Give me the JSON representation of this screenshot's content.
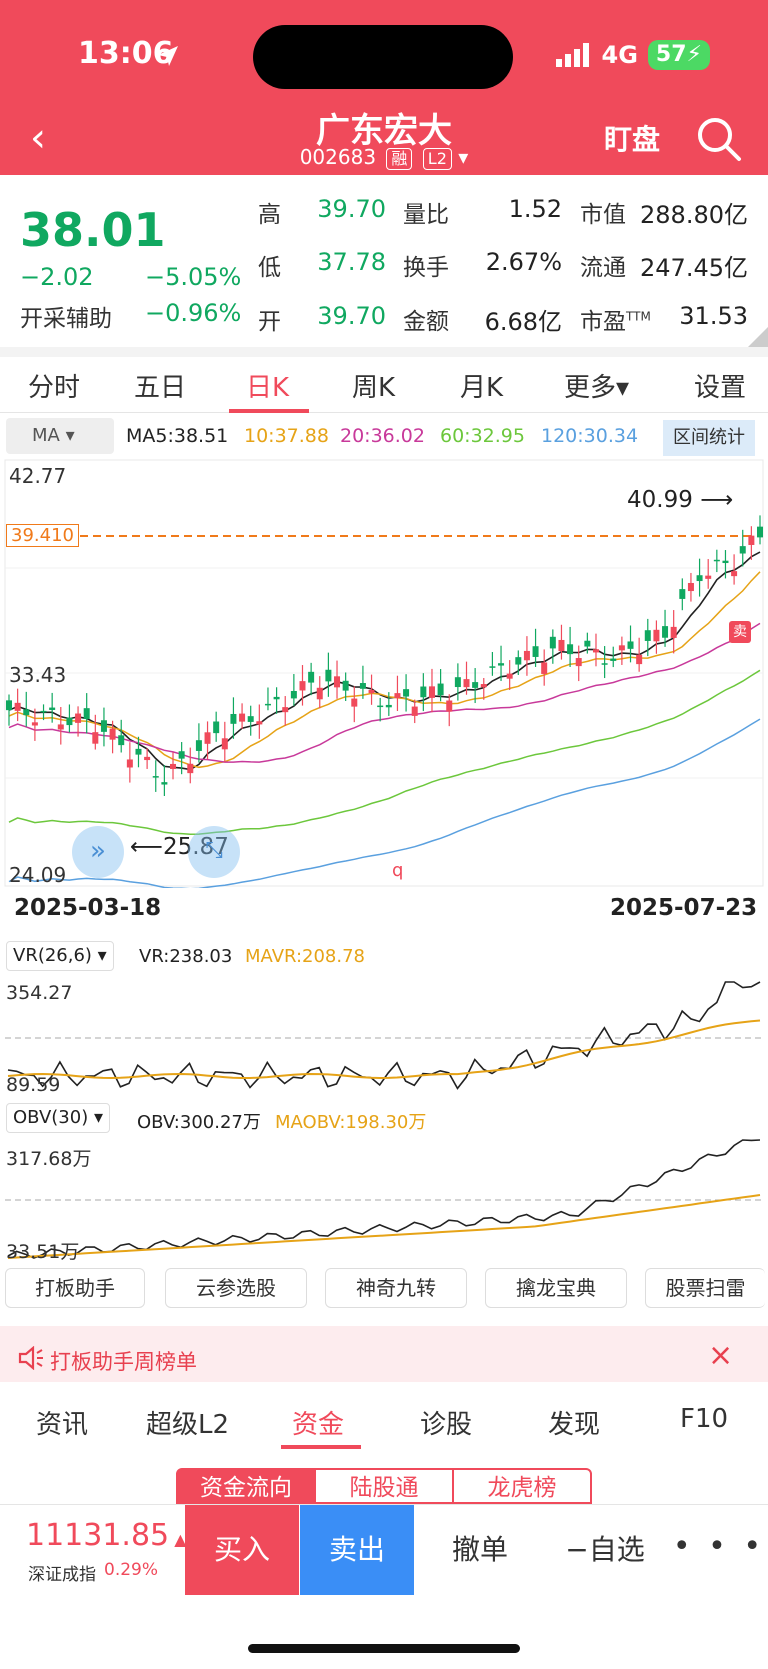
{
  "status": {
    "time": "13:06",
    "network": "4G",
    "battery": "57"
  },
  "header": {
    "title": "广东宏大",
    "code": "002683",
    "tag_margin": "融",
    "tag_level": "L2",
    "watch_label": "盯盘"
  },
  "quote": {
    "price": "38.01",
    "change": "−2.02",
    "change_pct": "−5.05%",
    "assist_label": "开采辅助",
    "assist_value": "−0.96%",
    "grid": [
      {
        "label": "高",
        "value": "39.70"
      },
      {
        "label": "量比",
        "value": "1.52"
      },
      {
        "label": "市值",
        "value": "288.80亿"
      },
      {
        "label": "低",
        "value": "37.78"
      },
      {
        "label": "换手",
        "value": "2.67%"
      },
      {
        "label": "流通",
        "value": "247.45亿"
      },
      {
        "label": "开",
        "value": "39.70"
      },
      {
        "label": "金额",
        "value": "6.68亿"
      },
      {
        "label": "市盈",
        "value": "31.53"
      }
    ],
    "pe_suffix": "TTM"
  },
  "tabs": [
    "分时",
    "五日",
    "日K",
    "周K",
    "月K",
    "更多▾",
    "设置"
  ],
  "ma": {
    "selector": "MA",
    "items": [
      "MA5:38.51",
      "10:37.88",
      "20:36.02",
      "60:32.95",
      "120:30.34"
    ],
    "colors": [
      "#222222",
      "#e6a317",
      "#c8399a",
      "#6cc73c",
      "#5aa0df"
    ],
    "range_button": "区间统计"
  },
  "kline": {
    "y_max_label": "42.77",
    "y_mid_label": "33.43",
    "y_min_label": "24.09",
    "current_line_label": "39.410",
    "high_marker": "40.99",
    "low_marker": "25.87",
    "sell_marker": "卖",
    "q_marker": "q",
    "start_date": "2025-03-18",
    "end_date": "2025-07-23",
    "up_color": "#f04a5b",
    "down_color": "#10a860"
  },
  "vr": {
    "selector": "VR(26,6)",
    "value": "VR:238.03",
    "ma": "MAVR:208.78",
    "top": "354.27",
    "bottom": "89.59"
  },
  "obv": {
    "selector": "OBV(30)",
    "value": "OBV:300.27万",
    "ma": "MAOBV:198.30万",
    "top": "317.68万",
    "bottom": "33.51万"
  },
  "tools": [
    "打板助手",
    "云参选股",
    "神奇九转",
    "擒龙宝典",
    "股票扫雷"
  ],
  "banner": {
    "text": "打板助手周榜单",
    "close": "×"
  },
  "tabs2": [
    "资讯",
    "超级L2",
    "资金",
    "诊股",
    "发现",
    "F10"
  ],
  "segments": [
    "资金流向",
    "陆股通",
    "龙虎榜"
  ],
  "bottom": {
    "index_value": "11131.85",
    "index_name": "深证成指",
    "index_pct": "0.29%",
    "buy": "买入",
    "sell": "卖出",
    "cancel": "撤单",
    "watch": "−自选",
    "more": "• • •"
  }
}
